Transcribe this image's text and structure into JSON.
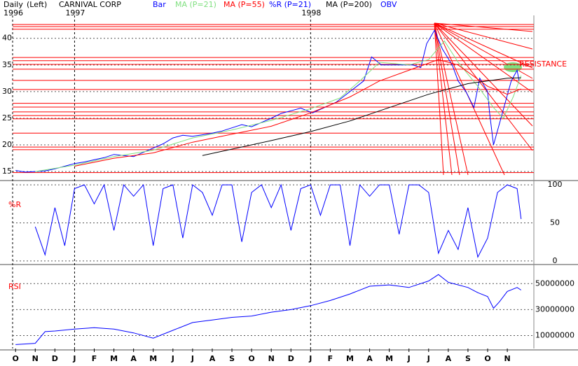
{
  "chart_data": [
    {
      "type": "line",
      "period": "Daily",
      "scale": "(Left)",
      "title": "CARNIVAL CORP",
      "annotation": "RESISTANCE",
      "xlim": [
        -0.15,
        26.35
      ],
      "ylim": [
        13.7,
        44.3
      ],
      "yticks": [
        15,
        20,
        25,
        30,
        35,
        40
      ],
      "grid": true,
      "year_ticks": [
        {
          "value": -0.15,
          "label": "1996"
        },
        {
          "value": 3,
          "label": "1997"
        },
        {
          "value": 15,
          "label": "1998"
        }
      ],
      "hlines": {
        "color": "#ff0000",
        "values": [
          42.6,
          42.2,
          41.7,
          36.4,
          35.8,
          35.1,
          34.2,
          32.1,
          30.4,
          27.8,
          27.1,
          26.2,
          25.5,
          24.9,
          22.2,
          19.6,
          19.1,
          14.8
        ]
      },
      "series": [
        {
          "name": "Bar",
          "color": "#0000ff",
          "x": [
            0,
            0.5,
            1,
            1.5,
            2,
            2.5,
            3,
            3.5,
            4,
            4.5,
            5,
            5.5,
            6,
            6.5,
            7,
            7.5,
            8,
            8.5,
            9,
            9.5,
            10,
            10.5,
            11,
            11.5,
            12,
            12.5,
            13,
            13.5,
            14,
            14.5,
            15.1,
            16.3,
            17.0,
            17.7,
            18.1,
            18.6,
            19.5,
            20.2,
            20.6,
            20.9,
            21.3,
            21.7,
            22.2,
            22.5,
            22.9,
            23.3,
            23.6,
            24.0,
            24.1,
            24.3,
            24.6,
            24.9,
            25.2,
            25.5,
            25.6
          ],
          "values": [
            15.2,
            14.9,
            15.0,
            15.1,
            15.5,
            16.0,
            16.5,
            16.8,
            17.2,
            17.6,
            18.2,
            18.0,
            17.8,
            18.6,
            19.4,
            20.2,
            21.3,
            21.8,
            21.6,
            21.9,
            22.2,
            22.6,
            23.2,
            23.8,
            23.4,
            24.2,
            25.0,
            25.9,
            26.4,
            26.9,
            26,
            28,
            30,
            32,
            36.5,
            35,
            35,
            35,
            34.5,
            39,
            41.5,
            38,
            35,
            32,
            30,
            27,
            32.5,
            30,
            26,
            20,
            24,
            28,
            32,
            34,
            32
          ]
        },
        {
          "name": "MA (P=21)",
          "color": "#80e080",
          "x": [
            1,
            3,
            5,
            7,
            9,
            11,
            13,
            15,
            16.5,
            17.5,
            18.5,
            20,
            21,
            21.8,
            22.5,
            23.5,
            24.3,
            24.8,
            25.3,
            25.7
          ],
          "values": [
            15,
            16.2,
            17.8,
            19,
            21.3,
            22.8,
            24.6,
            26.8,
            28.8,
            32,
            35.5,
            35,
            36,
            39.5,
            35.5,
            31,
            27,
            25,
            29,
            33
          ]
        },
        {
          "name": "MA (P=55)",
          "color": "#ff0000",
          "x": [
            3,
            5,
            7,
            9,
            11,
            13,
            15,
            17,
            18.5,
            20,
            21.5,
            22.5,
            24,
            25,
            25.7
          ],
          "values": [
            16,
            17.5,
            18.5,
            20.5,
            22,
            23.5,
            26,
            29,
            32,
            34,
            36,
            35,
            31,
            29.5,
            30.5
          ]
        },
        {
          "name": "MA (P=200)",
          "color": "#000000",
          "x": [
            9.5,
            11,
            13,
            15,
            17,
            19,
            21,
            23,
            25,
            25.7
          ],
          "values": [
            18,
            19.2,
            20.8,
            22.5,
            24.5,
            27,
            29.5,
            31.5,
            32.5,
            32.6
          ]
        }
      ]
    },
    {
      "type": "line",
      "label": "%R",
      "xlim": [
        -0.15,
        26.35
      ],
      "ylim": [
        -2,
        101
      ],
      "yticks": [
        0,
        50,
        100
      ],
      "grid": true,
      "series": [
        {
          "name": "%R (P=21)",
          "color": "#0000ff",
          "x": [
            1,
            1.5,
            2,
            2.5,
            3,
            3.5,
            4,
            4.5,
            5,
            5.5,
            6,
            6.5,
            7,
            7.5,
            8,
            8.5,
            9,
            9.5,
            10,
            10.5,
            11,
            11.5,
            12,
            12.5,
            13,
            13.5,
            14,
            14.5,
            15,
            15.5,
            16,
            16.5,
            17,
            17.5,
            18,
            18.5,
            19,
            19.5,
            20,
            20.5,
            21,
            21.5,
            22,
            22.5,
            23,
            23.5,
            24,
            24.5,
            25,
            25.5,
            25.7
          ],
          "values": [
            45,
            8,
            70,
            20,
            95,
            100,
            75,
            100,
            40,
            100,
            85,
            100,
            20,
            95,
            100,
            30,
            100,
            90,
            60,
            100,
            100,
            25,
            90,
            100,
            70,
            100,
            40,
            95,
            100,
            60,
            100,
            100,
            20,
            100,
            85,
            100,
            100,
            35,
            100,
            100,
            90,
            10,
            40,
            15,
            70,
            5,
            30,
            90,
            100,
            95,
            55
          ]
        }
      ]
    },
    {
      "type": "line",
      "label": "RSI",
      "xlim": [
        -0.15,
        26.35
      ],
      "ylim": [
        0,
        62000000
      ],
      "yticks": [
        10000000,
        30000000,
        50000000
      ],
      "grid": true,
      "xticks": [
        {
          "value": 0,
          "label": "O"
        },
        {
          "value": 1,
          "label": "N"
        },
        {
          "value": 2,
          "label": "D"
        },
        {
          "value": 3,
          "label": "J"
        },
        {
          "value": 4,
          "label": "F"
        },
        {
          "value": 5,
          "label": "M"
        },
        {
          "value": 6,
          "label": "A"
        },
        {
          "value": 7,
          "label": "M"
        },
        {
          "value": 8,
          "label": "J"
        },
        {
          "value": 9,
          "label": "J"
        },
        {
          "value": 10,
          "label": "A"
        },
        {
          "value": 11,
          "label": "S"
        },
        {
          "value": 12,
          "label": "O"
        },
        {
          "value": 13,
          "label": "N"
        },
        {
          "value": 14,
          "label": "D"
        },
        {
          "value": 15,
          "label": "J"
        },
        {
          "value": 16,
          "label": "F"
        },
        {
          "value": 17,
          "label": "M"
        },
        {
          "value": 18,
          "label": "A"
        },
        {
          "value": 19,
          "label": "M"
        },
        {
          "value": 20,
          "label": "J"
        },
        {
          "value": 21,
          "label": "J"
        },
        {
          "value": 22,
          "label": "A"
        },
        {
          "value": 23,
          "label": "S"
        },
        {
          "value": 24,
          "label": "O"
        },
        {
          "value": 25,
          "label": "N"
        }
      ],
      "series": [
        {
          "name": "OBV",
          "color": "#0000ff",
          "x": [
            0,
            1,
            1.5,
            2,
            3,
            4,
            5,
            6,
            7,
            8,
            9,
            10,
            11,
            12,
            13,
            14,
            15,
            16,
            17,
            18,
            19,
            20,
            21,
            21.5,
            22,
            23,
            23.5,
            24,
            24.3,
            24.6,
            25,
            25.5,
            25.7
          ],
          "values": [
            3000000,
            4000000,
            13000000,
            13500000,
            15000000,
            16000000,
            15000000,
            12000000,
            8000000,
            14000000,
            20000000,
            22000000,
            24000000,
            25000000,
            28000000,
            30000000,
            33000000,
            37000000,
            42000000,
            48000000,
            49000000,
            47000000,
            52000000,
            57000000,
            51000000,
            47000000,
            43000000,
            40000000,
            31000000,
            36000000,
            44000000,
            47000000,
            45000000
          ]
        }
      ]
    }
  ]
}
